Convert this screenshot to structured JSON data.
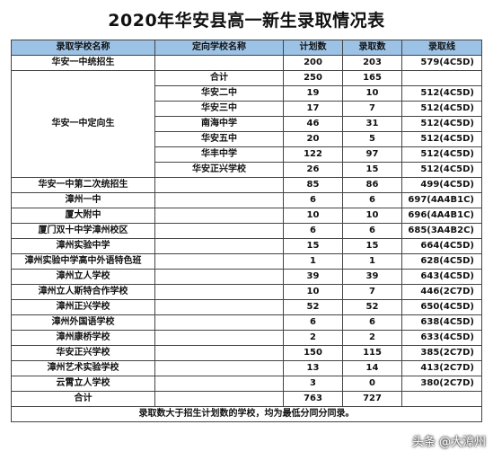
{
  "title": "2020年华安县高一新生录取情况表",
  "headers": [
    "录取学校名称",
    "定向学校名称",
    "计划数",
    "录取数",
    "录取线"
  ],
  "unified": {
    "school": "华安一中统招生",
    "plan": "200",
    "admit": "203",
    "line": "579(4C5D)"
  },
  "directed": {
    "school": "华安一中定向生",
    "total": {
      "name": "合计",
      "plan": "250",
      "admit": "165",
      "line": ""
    },
    "rows": [
      {
        "name": "华安二中",
        "plan": "19",
        "admit": "10",
        "line": "512(4C5D)"
      },
      {
        "name": "华安三中",
        "plan": "17",
        "admit": "7",
        "line": "512(4C5D)"
      },
      {
        "name": "南海中学",
        "plan": "46",
        "admit": "31",
        "line": "512(4C5D)"
      },
      {
        "name": "华安五中",
        "plan": "20",
        "admit": "5",
        "line": "512(4C5D)"
      },
      {
        "name": "华丰中学",
        "plan": "122",
        "admit": "97",
        "line": "512(4C5D)"
      },
      {
        "name": "华安正兴学校",
        "plan": "26",
        "admit": "15",
        "line": "512(4C5D)"
      }
    ]
  },
  "schools": [
    {
      "name": "华安一中第二次统招生",
      "plan": "85",
      "admit": "86",
      "line": "499(4C5D)"
    },
    {
      "name": "漳州一中",
      "plan": "6",
      "admit": "6",
      "line": "697(4A4B1C)"
    },
    {
      "name": "厦大附中",
      "plan": "10",
      "admit": "10",
      "line": "696(4A4B1C)"
    },
    {
      "name": "厦门双十中学漳州校区",
      "plan": "6",
      "admit": "6",
      "line": "685(3A4B2C)"
    },
    {
      "name": "漳州实验中学",
      "plan": "15",
      "admit": "15",
      "line": "664(4C5D)"
    },
    {
      "name": "漳州实验中学高中外语特色班",
      "plan": "1",
      "admit": "1",
      "line": "628(4C5D)"
    },
    {
      "name": "漳州立人学校",
      "plan": "39",
      "admit": "39",
      "line": "643(4C5D)"
    },
    {
      "name": "漳州立人斯特合作学校",
      "plan": "10",
      "admit": "7",
      "line": "446(2C7D)"
    },
    {
      "name": "漳州正兴学校",
      "plan": "52",
      "admit": "52",
      "line": "650(4C5D)"
    },
    {
      "name": "漳州外国语学校",
      "plan": "6",
      "admit": "6",
      "line": "638(4C5D)"
    },
    {
      "name": "漳州康桥学校",
      "plan": "2",
      "admit": "2",
      "line": "633(4C5D)"
    },
    {
      "name": "华安正兴学校",
      "plan": "150",
      "admit": "115",
      "line": "385(2C7D)"
    },
    {
      "name": "漳州艺术实验学校",
      "plan": "13",
      "admit": "14",
      "line": "413(2C7D)"
    },
    {
      "name": "云霄立人学校",
      "plan": "3",
      "admit": "0",
      "line": "380(2C7D)"
    }
  ],
  "grand_total": {
    "label": "合计",
    "plan": "763",
    "admit": "727"
  },
  "footnote": "录取数大于招生计划数的学校，均为最低分同分同录。",
  "watermark": "头条 @大漳州"
}
